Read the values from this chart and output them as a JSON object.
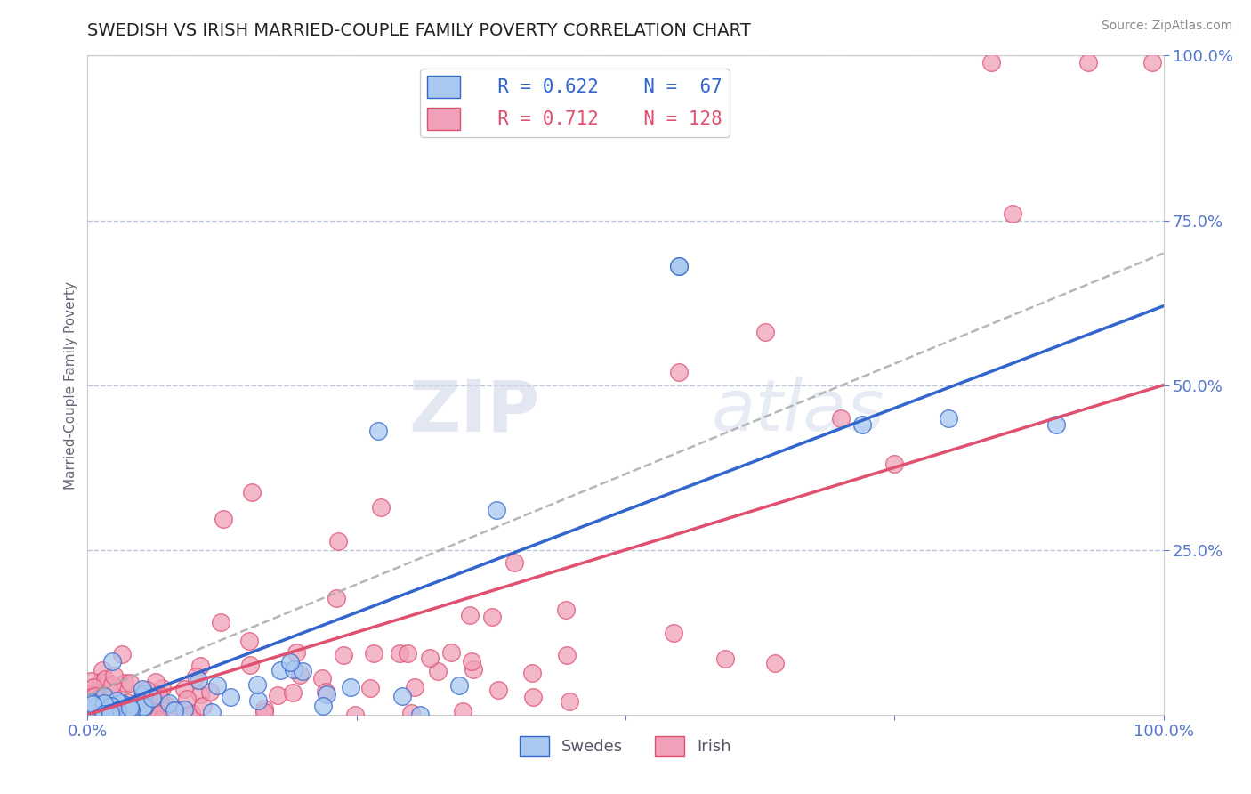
{
  "title": "SWEDISH VS IRISH MARRIED-COUPLE FAMILY POVERTY CORRELATION CHART",
  "source": "Source: ZipAtlas.com",
  "ylabel": "Married-Couple Family Poverty",
  "xlim": [
    0.0,
    1.0
  ],
  "ylim": [
    0.0,
    1.0
  ],
  "xtick_labels": [
    "0.0%",
    "",
    "",
    "",
    "100.0%"
  ],
  "xtick_vals": [
    0.0,
    0.25,
    0.5,
    0.75,
    1.0
  ],
  "ytick_labels": [
    "100.0%",
    "75.0%",
    "50.0%",
    "25.0%"
  ],
  "ytick_vals": [
    1.0,
    0.75,
    0.5,
    0.25
  ],
  "grid_color": "#b8c4d8",
  "background_color": "#ffffff",
  "title_color": "#222222",
  "title_fontsize": 14,
  "tick_color": "#5577cc",
  "swedish_color": "#a8c8f0",
  "irish_color": "#f0a0b8",
  "swedish_line_color": "#3366cc",
  "irish_line_color": "#e05070",
  "dashed_line_color": "#aaaaaa",
  "legend_R_swedish": "R = 0.622",
  "legend_N_swedish": "N =  67",
  "legend_R_irish": "R = 0.712",
  "legend_N_irish": "N = 128",
  "watermark_zip": "ZIP",
  "watermark_atlas": "atlas",
  "swedish_trend": [
    0.0,
    0.62
  ],
  "irish_trend": [
    0.0,
    0.5
  ],
  "dashed_trend": [
    0.03,
    0.7
  ]
}
